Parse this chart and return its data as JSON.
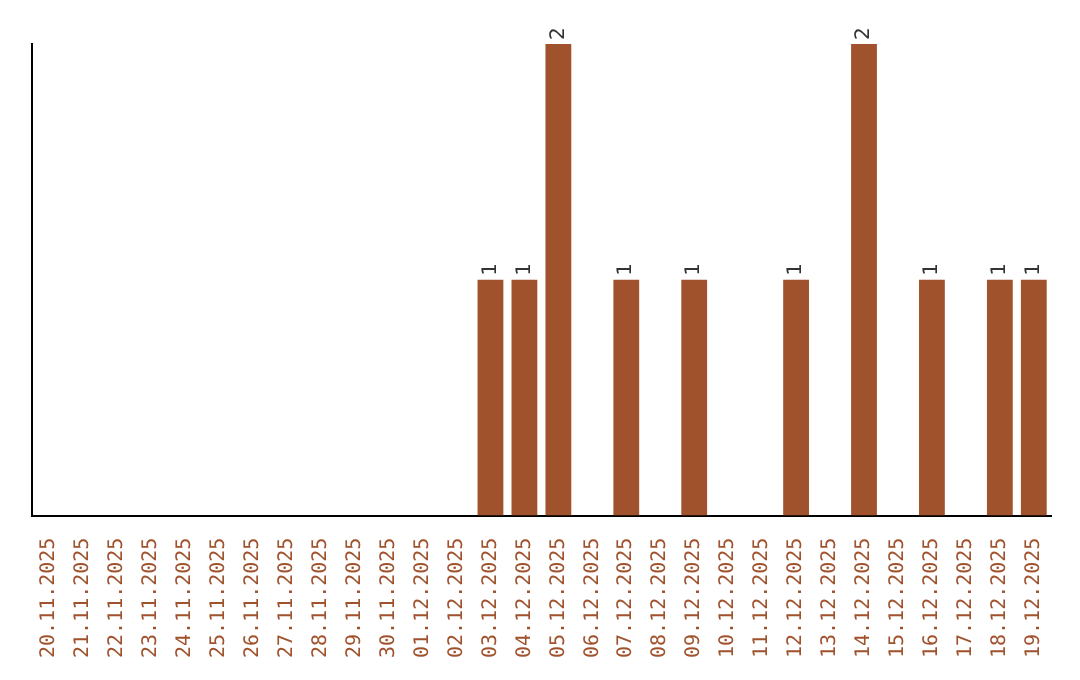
{
  "chart_data": {
    "type": "bar",
    "categories": [
      "20.11.2025",
      "21.11.2025",
      "22.11.2025",
      "23.11.2025",
      "24.11.2025",
      "25.11.2025",
      "26.11.2025",
      "27.11.2025",
      "28.11.2025",
      "29.11.2025",
      "30.11.2025",
      "01.12.2025",
      "02.12.2025",
      "03.12.2025",
      "04.12.2025",
      "05.12.2025",
      "06.12.2025",
      "07.12.2025",
      "08.12.2025",
      "09.12.2025",
      "10.12.2025",
      "11.12.2025",
      "12.12.2025",
      "13.12.2025",
      "14.12.2025",
      "15.12.2025",
      "16.12.2025",
      "17.12.2025",
      "18.12.2025",
      "19.12.2025"
    ],
    "values": [
      null,
      null,
      null,
      null,
      null,
      null,
      null,
      null,
      null,
      null,
      null,
      null,
      null,
      1,
      1,
      2,
      null,
      1,
      null,
      1,
      null,
      null,
      1,
      null,
      2,
      null,
      1,
      null,
      1,
      1
    ],
    "color": "#a0522d",
    "data_labels": true,
    "grid": false,
    "legend": false,
    "tick_labels": "x"
  }
}
